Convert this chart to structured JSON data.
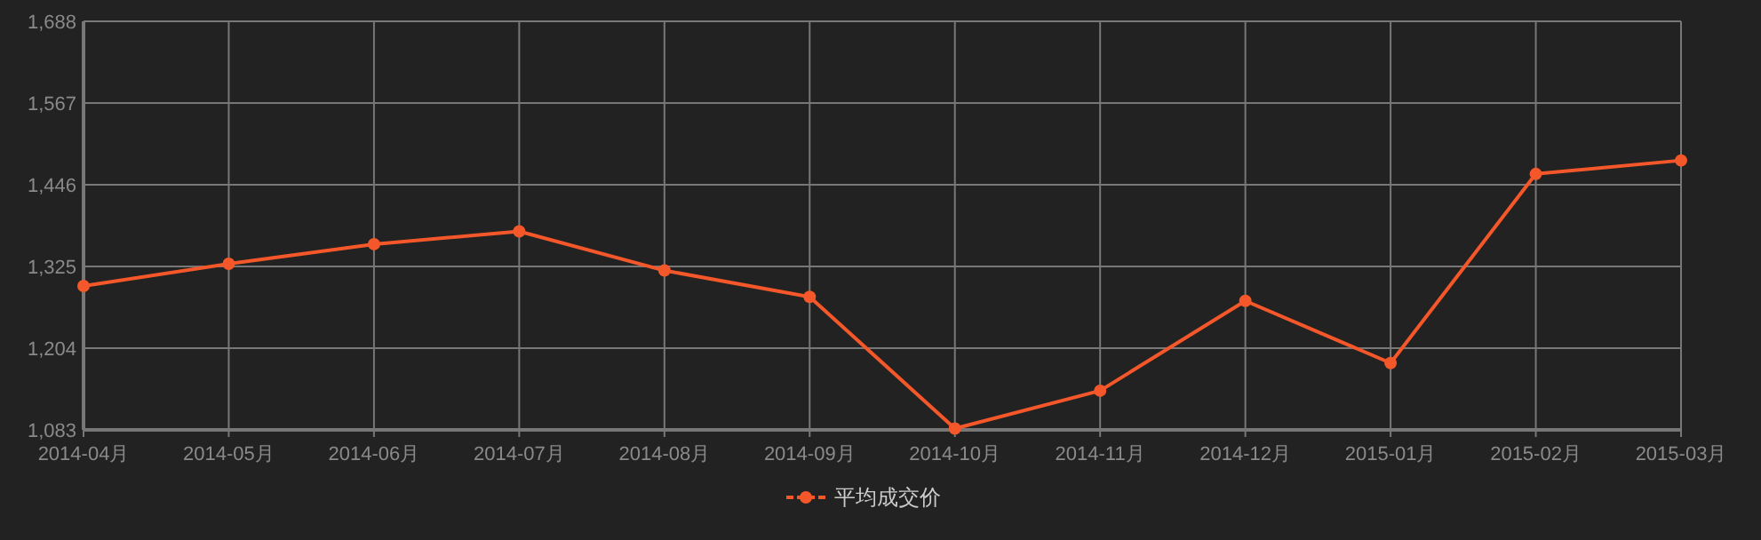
{
  "chart_data": {
    "type": "line",
    "categories": [
      "2014-04月",
      "2014-05月",
      "2014-06月",
      "2014-07月",
      "2014-08月",
      "2014-09月",
      "2014-10月",
      "2014-11月",
      "2014-12月",
      "2015-01月",
      "2015-02月",
      "2015-03月"
    ],
    "series": [
      {
        "name": "平均成交价",
        "color": "#f4572a",
        "values": [
          1296,
          1329,
          1358,
          1377,
          1319,
          1280,
          1085,
          1141,
          1274,
          1182,
          1462,
          1482
        ]
      }
    ],
    "ylim": [
      1083,
      1688
    ],
    "yticks": [
      {
        "value": 1083,
        "label": "1,083"
      },
      {
        "value": 1204,
        "label": "1,204"
      },
      {
        "value": 1325,
        "label": "1,325"
      },
      {
        "value": 1446,
        "label": "1,446"
      },
      {
        "value": 1567,
        "label": "1,567"
      },
      {
        "value": 1688,
        "label": "1,688"
      }
    ],
    "grid": true,
    "legend": "bottom",
    "marker": "circle",
    "line_style": "solid"
  }
}
